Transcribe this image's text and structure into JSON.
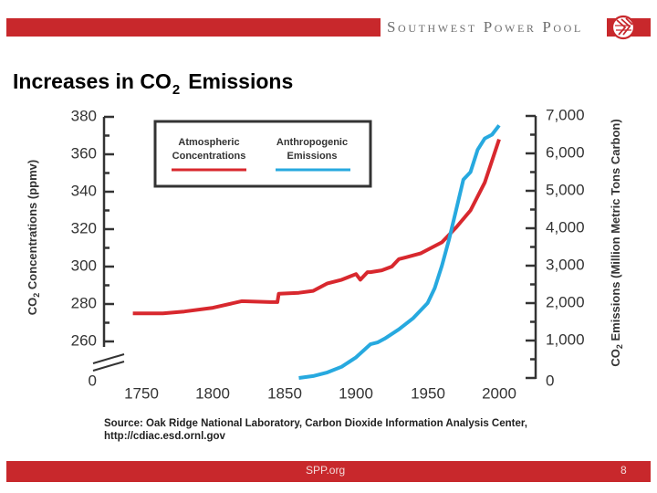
{
  "header": {
    "org_name": "Southwest Power Pool"
  },
  "slide": {
    "title_main": "Increases in CO",
    "title_sub": "2",
    "title_rest": "Emissions"
  },
  "chart_data": {
    "type": "line",
    "x_ticks": [
      "1750",
      "1800",
      "1850",
      "1900",
      "1950",
      "2000"
    ],
    "x_range": [
      1720,
      2010
    ],
    "y_left": {
      "label_pre": "CO",
      "label_sub": "2",
      "label_post": " Concentrations (ppmv)",
      "ticks": [
        "380",
        "360",
        "340",
        "320",
        "300",
        "280",
        "260"
      ],
      "zero_label": "0",
      "range": [
        250,
        380
      ],
      "axis_break": true
    },
    "y_right": {
      "label_pre": "CO",
      "label_sub": "2",
      "label_post": " Emissions (Million Metric Tons Carbon)",
      "ticks": [
        "7,000",
        "6,000",
        "5,000",
        "4,000",
        "3,000",
        "2,000",
        "1,000",
        "0"
      ],
      "range": [
        0,
        7000
      ]
    },
    "legend": {
      "position": "top-left",
      "items": [
        {
          "line1": "Atmospheric",
          "line2": "Concentrations",
          "color": "#d8282e"
        },
        {
          "line1": "Anthropogenic",
          "line2": "Emissions",
          "color": "#27a9df"
        }
      ]
    },
    "series": [
      {
        "name": "Atmospheric Concentrations",
        "axis": "left",
        "color": "#d8282e",
        "x": [
          1744,
          1765,
          1780,
          1800,
          1820,
          1840,
          1845,
          1846,
          1860,
          1870,
          1880,
          1890,
          1900,
          1903,
          1908,
          1910,
          1918,
          1925,
          1930,
          1935,
          1945,
          1960,
          1970,
          1980,
          1990,
          2000
        ],
        "y": [
          275,
          275,
          276,
          278,
          281.5,
          281,
          281,
          285.5,
          286,
          287,
          291,
          293,
          296,
          293,
          297,
          297,
          298,
          300,
          304,
          305,
          307,
          313,
          321,
          330,
          345,
          368
        ]
      },
      {
        "name": "Anthropogenic Emissions",
        "axis": "right",
        "color": "#27a9df",
        "x": [
          1860,
          1870,
          1880,
          1890,
          1900,
          1910,
          1915,
          1920,
          1930,
          1940,
          1950,
          1955,
          1960,
          1965,
          1970,
          1975,
          1980,
          1985,
          1990,
          1995,
          2000
        ],
        "y": [
          0,
          50,
          150,
          300,
          550,
          900,
          950,
          1050,
          1300,
          1600,
          2000,
          2400,
          3000,
          3700,
          4500,
          5300,
          5500,
          6100,
          6400,
          6500,
          6750
        ]
      }
    ],
    "source": {
      "line1": "Source: Oak Ridge National Laboratory, Carbon Dioxide Information Analysis Center,",
      "line2": "http://cdiac.esd.ornl.gov"
    }
  },
  "footer": {
    "site": "SPP.org",
    "page": "8"
  },
  "colors": {
    "brand_red": "#c8282c",
    "co2_red": "#d8282e",
    "emissions_blue": "#27a9df"
  }
}
